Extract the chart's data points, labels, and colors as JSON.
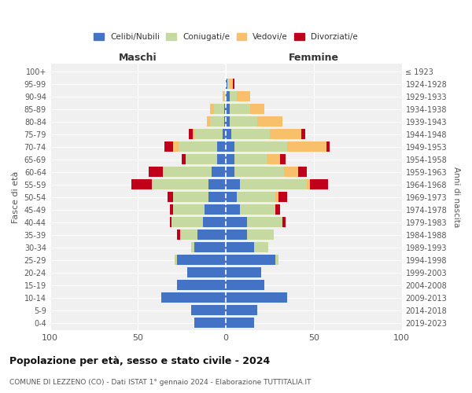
{
  "age_groups": [
    "0-4",
    "5-9",
    "10-14",
    "15-19",
    "20-24",
    "25-29",
    "30-34",
    "35-39",
    "40-44",
    "45-49",
    "50-54",
    "55-59",
    "60-64",
    "65-69",
    "70-74",
    "75-79",
    "80-84",
    "85-89",
    "90-94",
    "95-99",
    "100+"
  ],
  "birth_years": [
    "2019-2023",
    "2014-2018",
    "2009-2013",
    "2004-2008",
    "1999-2003",
    "1994-1998",
    "1989-1993",
    "1984-1988",
    "1979-1983",
    "1974-1978",
    "1969-1973",
    "1964-1968",
    "1959-1963",
    "1954-1958",
    "1949-1953",
    "1944-1948",
    "1939-1943",
    "1934-1938",
    "1929-1933",
    "1924-1928",
    "≤ 1923"
  ],
  "colors": {
    "celibi": "#4472c4",
    "coniugati": "#c5d9a0",
    "vedovi": "#f9c06b",
    "divorziati": "#c0001a"
  },
  "maschi": {
    "celibi": [
      18,
      20,
      37,
      28,
      22,
      28,
      18,
      16,
      13,
      12,
      10,
      10,
      8,
      5,
      5,
      2,
      1,
      1,
      0,
      0,
      0
    ],
    "coniugati": [
      0,
      0,
      0,
      0,
      0,
      1,
      2,
      10,
      18,
      18,
      20,
      32,
      28,
      18,
      22,
      16,
      8,
      6,
      1,
      0,
      0
    ],
    "vedovi": [
      0,
      0,
      0,
      0,
      0,
      0,
      0,
      0,
      0,
      0,
      0,
      0,
      0,
      0,
      3,
      1,
      2,
      2,
      1,
      0,
      0
    ],
    "divorziati": [
      0,
      0,
      0,
      0,
      0,
      0,
      0,
      2,
      1,
      2,
      3,
      12,
      8,
      2,
      5,
      2,
      0,
      0,
      0,
      0,
      0
    ]
  },
  "femmine": {
    "celibi": [
      16,
      18,
      35,
      22,
      20,
      28,
      16,
      12,
      12,
      8,
      6,
      8,
      5,
      5,
      5,
      3,
      2,
      2,
      2,
      1,
      0
    ],
    "coniugati": [
      0,
      0,
      0,
      0,
      0,
      2,
      8,
      15,
      20,
      20,
      22,
      38,
      28,
      18,
      30,
      22,
      16,
      12,
      4,
      1,
      0
    ],
    "vedovi": [
      0,
      0,
      0,
      0,
      0,
      0,
      0,
      0,
      0,
      0,
      2,
      2,
      8,
      8,
      22,
      18,
      14,
      8,
      8,
      2,
      0
    ],
    "divorziati": [
      0,
      0,
      0,
      0,
      0,
      0,
      0,
      0,
      2,
      3,
      5,
      10,
      5,
      3,
      2,
      2,
      0,
      0,
      0,
      1,
      0
    ]
  },
  "xlim": 100,
  "title": "Popolazione per età, sesso e stato civile - 2024",
  "subtitle": "COMUNE DI LEZZENO (CO) - Dati ISTAT 1° gennaio 2024 - Elaborazione TUTTITALIA.IT",
  "ylabel_left": "Fasce di età",
  "ylabel_right": "Anni di nascita",
  "xlabel_maschi": "Maschi",
  "xlabel_femmine": "Femmine",
  "bg_color": "#f0f0f0",
  "grid_color": "#cccccc"
}
